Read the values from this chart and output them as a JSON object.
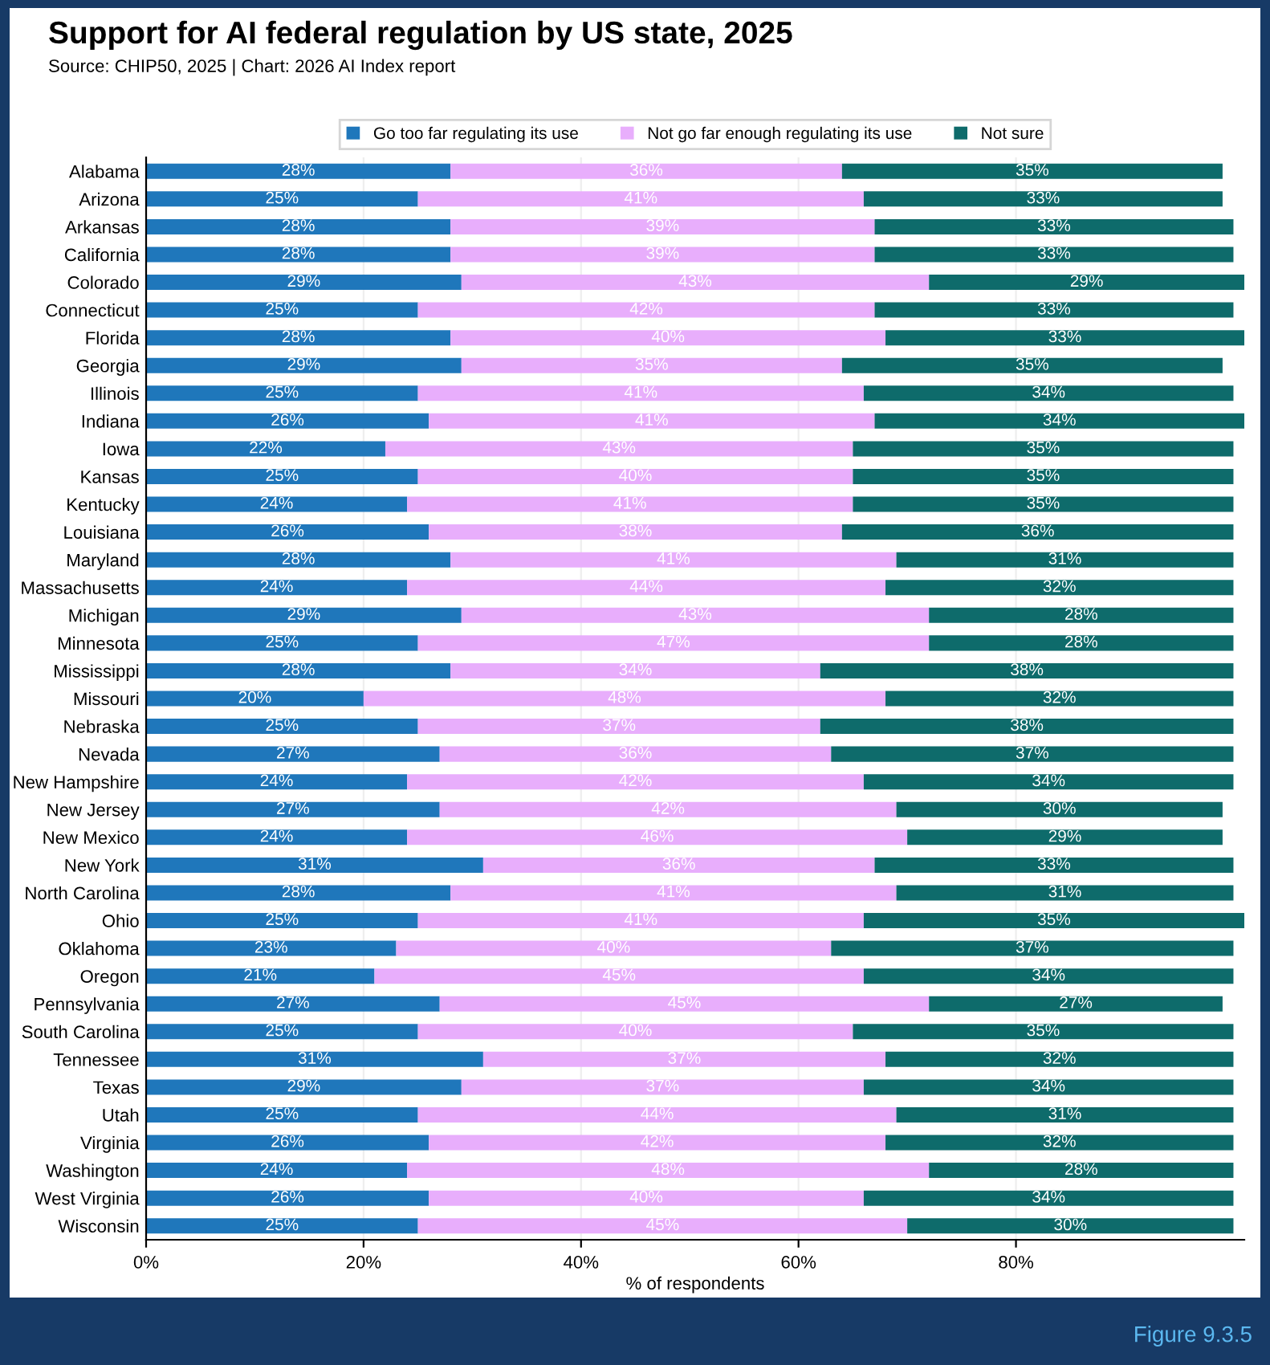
{
  "chart_data": {
    "type": "bar",
    "orientation": "horizontal",
    "stacked": true,
    "title": "Support for AI federal regulation by US state, 2025",
    "subtitle": "Source: CHIP50, 2025 | Chart: 2026 AI Index report",
    "xlabel": "% of respondents",
    "annotations": [
      "Figure 9.3.5"
    ],
    "categories": [
      "Alabama",
      "Arizona",
      "Arkansas",
      "California",
      "Colorado",
      "Connecticut",
      "Florida",
      "Georgia",
      "Illinois",
      "Indiana",
      "Iowa",
      "Kansas",
      "Kentucky",
      "Louisiana",
      "Maryland",
      "Massachusetts",
      "Michigan",
      "Minnesota",
      "Mississippi",
      "Missouri",
      "Nebraska",
      "Nevada",
      "New Hampshire",
      "New Jersey",
      "New Mexico",
      "New York",
      "North Carolina",
      "Ohio",
      "Oklahoma",
      "Oregon",
      "Pennsylvania",
      "South Carolina",
      "Tennessee",
      "Texas",
      "Utah",
      "Virginia",
      "Washington",
      "West Virginia",
      "Wisconsin"
    ],
    "series": [
      {
        "name": "Go too far regulating its use",
        "color": "#1f77bb",
        "values": [
          28,
          25,
          28,
          28,
          29,
          25,
          28,
          29,
          25,
          26,
          22,
          25,
          24,
          26,
          28,
          24,
          29,
          25,
          28,
          20,
          25,
          27,
          24,
          27,
          24,
          31,
          28,
          25,
          23,
          21,
          27,
          25,
          31,
          29,
          25,
          26,
          24,
          26,
          25
        ],
        "value_labels": [
          "28%",
          "25%",
          "28%",
          "28%",
          "29%",
          "25%",
          "28%",
          "29%",
          "25%",
          "26%",
          "22%",
          "25%",
          "24%",
          "26%",
          "28%",
          "24%",
          "29%",
          "25%",
          "28%",
          "20%",
          "25%",
          "27%",
          "24%",
          "27%",
          "24%",
          "31%",
          "28%",
          "25%",
          "23%",
          "21%",
          "27%",
          "25%",
          "31%",
          "29%",
          "25%",
          "26%",
          "24%",
          "26%",
          "25%"
        ]
      },
      {
        "name": "Not go far enough regulating its use",
        "color": "#e8aefc",
        "values": [
          36,
          41,
          39,
          39,
          43,
          42,
          40,
          35,
          41,
          41,
          43,
          40,
          41,
          38,
          41,
          44,
          43,
          47,
          34,
          48,
          37,
          36,
          42,
          42,
          46,
          36,
          41,
          41,
          40,
          45,
          45,
          40,
          37,
          37,
          44,
          42,
          48,
          40,
          45
        ],
        "value_labels": [
          "36%",
          "41%",
          "39%",
          "39%",
          "43%",
          "42%",
          "40%",
          "35%",
          "41%",
          "41%",
          "43%",
          "40%",
          "41%",
          "38%",
          "41%",
          "44%",
          "43%",
          "47%",
          "34%",
          "48%",
          "37%",
          "36%",
          "42%",
          "42%",
          "46%",
          "36%",
          "41%",
          "41%",
          "40%",
          "45%",
          "45%",
          "40%",
          "37%",
          "37%",
          "44%",
          "42%",
          "48%",
          "40%",
          "45%"
        ]
      },
      {
        "name": "Not sure",
        "color": "#0e6b6b",
        "values": [
          35,
          33,
          33,
          33,
          29,
          33,
          33,
          35,
          34,
          34,
          35,
          35,
          35,
          36,
          31,
          32,
          28,
          28,
          38,
          32,
          38,
          37,
          34,
          30,
          29,
          33,
          31,
          35,
          37,
          34,
          27,
          35,
          32,
          34,
          31,
          32,
          28,
          34,
          30
        ],
        "value_labels": [
          "35%",
          "33%",
          "33%",
          "33%",
          "29%",
          "33%",
          "33%",
          "35%",
          "34%",
          "34%",
          "35%",
          "35%",
          "35%",
          "36%",
          "31%",
          "32%",
          "28%",
          "28%",
          "38%",
          "32%",
          "38%",
          "37%",
          "34%",
          "30%",
          "29%",
          "33%",
          "31%",
          "35%",
          "37%",
          "34%",
          "27%",
          "35%",
          "32%",
          "34%",
          "31%",
          "32%",
          "28%",
          "34%",
          "30%"
        ]
      }
    ],
    "xlim": [
      0,
      101
    ],
    "xticks": [
      {
        "value": 0,
        "label": "0%"
      },
      {
        "value": 20,
        "label": "20%"
      },
      {
        "value": 40,
        "label": "40%"
      },
      {
        "value": 60,
        "label": "60%"
      },
      {
        "value": 80,
        "label": "80%"
      }
    ],
    "grid": "x",
    "legend": "top"
  }
}
